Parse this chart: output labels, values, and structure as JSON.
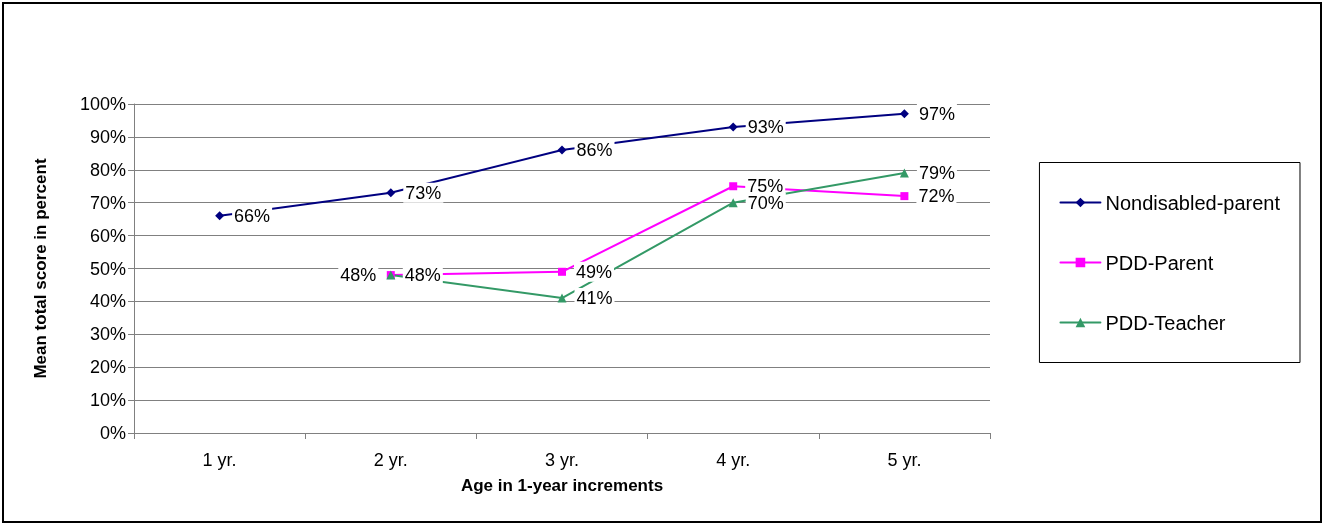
{
  "chart_data": {
    "type": "line",
    "xlabel": "Age in 1-year increments",
    "ylabel": "Mean total score in percent",
    "categories": [
      "1 yr.",
      "2 yr.",
      "3 yr.",
      "4 yr.",
      "5 yr."
    ],
    "series": [
      {
        "name": "Nondisabled-parent",
        "color": "#000080",
        "marker": "diamond",
        "values": [
          66,
          73,
          86,
          93,
          97
        ],
        "value_labels": [
          "66%",
          "73%",
          "86%",
          "93%",
          "97%"
        ]
      },
      {
        "name": "PDD-Parent",
        "color": "#ff00ff",
        "marker": "square",
        "values": [
          null,
          48,
          49,
          75,
          72
        ],
        "value_labels": [
          null,
          "48%",
          "49%",
          "75%",
          "72%"
        ]
      },
      {
        "name": "PDD-Teacher",
        "color": "#339966",
        "marker": "triangle",
        "values": [
          null,
          48,
          41,
          70,
          79
        ],
        "value_labels": [
          null,
          "48%",
          "41%",
          "70%",
          "79%"
        ]
      }
    ],
    "ylim": [
      0,
      100
    ],
    "yticks": [
      {
        "value": 0,
        "label": "0%"
      },
      {
        "value": 10,
        "label": "10%"
      },
      {
        "value": 20,
        "label": "20%"
      },
      {
        "value": 30,
        "label": "30%"
      },
      {
        "value": 40,
        "label": "40%"
      },
      {
        "value": 50,
        "label": "50%"
      },
      {
        "value": 60,
        "label": "60%"
      },
      {
        "value": 70,
        "label": "70%"
      },
      {
        "value": 80,
        "label": "80%"
      },
      {
        "value": 90,
        "label": "90%"
      },
      {
        "value": 100,
        "label": "100%"
      }
    ],
    "grid": "y",
    "legend": "right",
    "line_style": "solid"
  }
}
